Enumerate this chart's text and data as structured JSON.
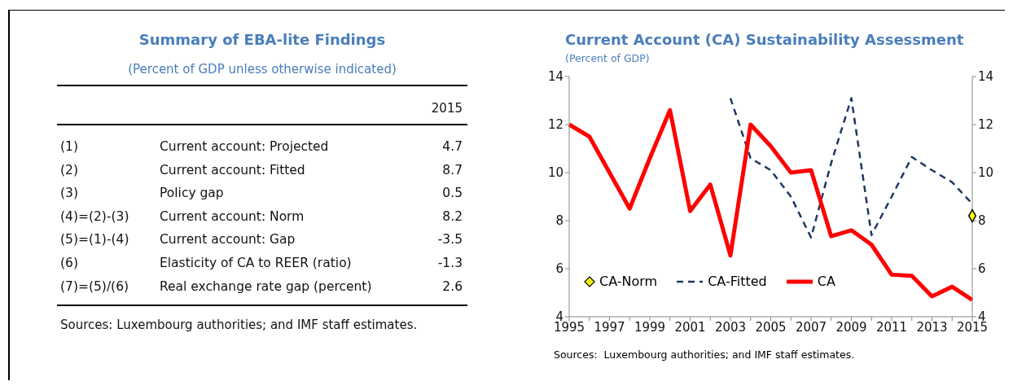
{
  "chart_data": [
    {
      "type": "other",
      "title": "Summary of EBA-lite Findings",
      "subtitle": "(Percent of GDP unless otherwise indicated)",
      "categories": [
        "Current account: Projected",
        "Current account: Fitted",
        "Policy gap",
        "Current account: Norm",
        "Current account: Gap",
        "Elasticity of CA to REER (ratio)",
        "Real exchange rate gap (percent)"
      ],
      "values": [
        4.7,
        8.7,
        0.5,
        8.2,
        -3.5,
        -1.3,
        2.6
      ],
      "data_labels": true,
      "annotations": [
        "2015",
        "(1)",
        "(2)",
        "(3)",
        "(4)=(2)-(3)",
        "(5)=(1)-(4)",
        "(6)",
        "(7)=(5)/(6)",
        "Sources: Luxembourg authorities; and IMF staff estimates."
      ]
    },
    {
      "type": "line",
      "title": "Current Account (CA) Sustainability Assessment",
      "subtitle": "(Percent of GDP)",
      "xlim": [
        1995,
        2015
      ],
      "xticks": [
        1995,
        {
          "value": 1996,
          "label": null
        },
        1997,
        {
          "value": 1998,
          "label": null
        },
        1999,
        {
          "value": 2000,
          "label": null
        },
        2001,
        {
          "value": 2002,
          "label": null
        },
        2003,
        {
          "value": 2004,
          "label": null
        },
        2005,
        {
          "value": 2006,
          "label": null
        },
        2007,
        {
          "value": 2008,
          "label": null
        },
        2009,
        {
          "value": 2010,
          "label": null
        },
        2011,
        {
          "value": 2012,
          "label": null
        },
        2013,
        {
          "value": 2014,
          "label": null
        },
        2015
      ],
      "ylim": [
        4,
        14
      ],
      "yticks": [
        4,
        6,
        8,
        10,
        12,
        14
      ],
      "y2lim": [
        4,
        14
      ],
      "y2ticks": [
        4,
        6,
        8,
        10,
        12,
        14
      ],
      "legend": "bottom left",
      "series": [
        {
          "name": "CA-Norm",
          "type": "scatter",
          "marker": "diamond",
          "color": "#ffff00",
          "x": [
            2015
          ],
          "values": [
            8.2
          ]
        },
        {
          "name": "CA-Fitted",
          "type": "line",
          "line_style": "dashed",
          "color": "#1f3864",
          "x": [
            2003,
            2004,
            2005,
            2006,
            2007,
            2008,
            2009,
            2010,
            2011,
            2012,
            2013,
            2014,
            2015
          ],
          "values": [
            13.1,
            10.6,
            10.1,
            9.0,
            7.3,
            10.4,
            13.1,
            7.4,
            9.0,
            10.65,
            10.1,
            9.6,
            8.7
          ]
        },
        {
          "name": "CA",
          "type": "line",
          "line_style": "solid",
          "color": "#ff0000",
          "x": [
            1995,
            1996,
            1997,
            1998,
            1999,
            2000,
            2001,
            2002,
            2003,
            2004,
            2005,
            2006,
            2007,
            2008,
            2009,
            2010,
            2011,
            2012,
            2013,
            2014,
            2015
          ],
          "values": [
            12.0,
            11.5,
            10.0,
            8.5,
            10.6,
            12.6,
            8.4,
            9.5,
            6.55,
            12.0,
            11.1,
            10.0,
            10.1,
            7.35,
            7.6,
            7.0,
            5.75,
            5.7,
            4.85,
            5.25,
            4.7
          ]
        }
      ],
      "annotations": [
        "Sources:  Luxembourg authorities; and IMF staff estimates."
      ]
    }
  ]
}
